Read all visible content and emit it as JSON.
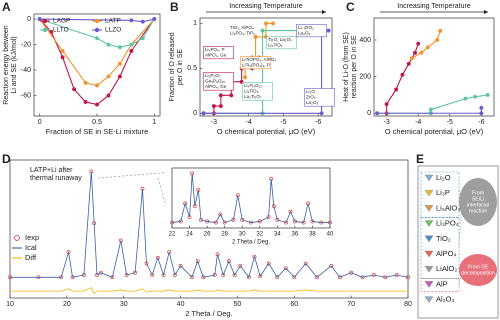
{
  "chart_data": [
    {
      "type": "line",
      "panel_label": "A",
      "y_label": [
        "Reaction energy between",
        "Li and SE (kJ/mol)"
      ],
      "x_label": "Fraction of SE in SE-Li mixture",
      "xlim": [
        -0.05,
        1.05
      ],
      "xticks": [
        0,
        0.5,
        1
      ],
      "ylim": [
        -76,
        4
      ],
      "yticks": [
        0,
        -20,
        -40,
        -60
      ],
      "legend": true,
      "series": [
        {
          "name": "LAGP",
          "color": "#c0174e",
          "mode": "lines+markers",
          "x": [
            0,
            0.1,
            0.2,
            0.3,
            0.4,
            0.5,
            0.6,
            0.7,
            0.8,
            1
          ],
          "values": [
            0,
            -10,
            -30,
            -55,
            -65,
            -67,
            -60,
            -45,
            -25,
            0
          ]
        },
        {
          "name": "LATP",
          "color": "#f4922a",
          "mode": "lines+markers",
          "x": [
            0,
            0.2,
            0.4,
            0.5,
            0.6,
            0.7,
            0.8,
            1
          ],
          "values": [
            0,
            -25,
            -50,
            -52,
            -45,
            -35,
            -20,
            0
          ]
        },
        {
          "name": "LLTO",
          "color": "#5cc5a0",
          "mode": "lines+markers",
          "x": [
            0,
            0.5,
            0.6,
            0.7,
            0.8,
            0.9,
            1
          ],
          "values": [
            0,
            -15,
            -20,
            -22,
            -20,
            -15,
            0
          ]
        },
        {
          "name": "LLZO",
          "color": "#6a5acd",
          "mode": "lines+markers",
          "x": [
            0,
            0.8,
            0.9,
            1
          ],
          "values": [
            0,
            -1,
            -2,
            0
          ]
        }
      ]
    },
    {
      "type": "line",
      "panel_label": "B",
      "arrow_label": "Increasing Temperature",
      "y_label": [
        "Fraction of O released",
        "per O in SE"
      ],
      "x_label": "O chemical potential, μO (eV)",
      "xlim": [
        -2.6,
        -6.4
      ],
      "xticks": [
        -3,
        -4,
        -5,
        -6
      ],
      "ylim": [
        -0.03,
        1.06
      ],
      "yticks": [
        0,
        0.5,
        1
      ],
      "series": [
        {
          "name": "LAGP",
          "color": "#c0174e",
          "mode": "lines+markers",
          "x": [
            -2.7,
            -3.0,
            -3.0,
            -3.2,
            -3.2,
            -3.5,
            -3.5,
            -3.8,
            -3.8,
            -4.1,
            -4.1,
            -4.3
          ],
          "values": [
            0,
            0,
            0.08,
            0.08,
            0.2,
            0.2,
            0.35,
            0.35,
            0.5,
            0.5,
            0.62,
            0.62
          ]
        },
        {
          "name": "LATP",
          "color": "#f4922a",
          "mode": "lines+markers",
          "x": [
            -3.9,
            -3.9,
            -4.2,
            -4.2,
            -4.5,
            -4.5,
            -4.7
          ],
          "values": [
            0.4,
            0.6,
            0.6,
            0.85,
            0.85,
            1.0,
            1.0
          ]
        },
        {
          "name": "LLTO",
          "color": "#5cc5a0",
          "mode": "lines+markers",
          "x": [
            -2.7,
            -4.4,
            -4.4,
            -5.9
          ],
          "values": [
            0,
            0,
            0.92,
            0.92
          ]
        },
        {
          "name": "LLZO",
          "color": "#6a5acd",
          "mode": "lines+markers",
          "x": [
            -2.7,
            -6.1,
            -6.1,
            -6.3
          ],
          "values": [
            0,
            0,
            0.92,
            0.92
          ]
        }
      ],
      "annotations": [
        {
          "lines": [
            "TiO₂, AlPO₄",
            "Li₃PO₄, TiP₂"
          ],
          "color": "none"
        },
        {
          "lines": [
            "Li₃PO₄, P",
            "AlPO₄, Ge"
          ],
          "color": "#c0174e"
        },
        {
          "lines": [
            "Li₂P₂O₇",
            "Ge₅P₆O₂₅",
            "AlPO₄, Ge"
          ],
          "color": "#c0174e"
        },
        {
          "lines": [
            "LiTiOPO₄, AlPO₄",
            "LiTi₂(PO₄)₃, P"
          ],
          "color": "#f4922a"
        },
        {
          "lines": [
            "Li₄Ti₅O₁₂",
            "Li₂TiO₃",
            "La₂Ti₂O₇"
          ],
          "color": "#5cc5a0"
        },
        {
          "lines": [
            "Ti₂O, La₂O₃",
            "Li₄TiO₄"
          ],
          "color": "#5cc5a0"
        },
        {
          "lines": [
            "Li, ZrO₂",
            "La₂O₃"
          ],
          "color": "#6a5acd"
        },
        {
          "lines": [
            "Li₂O",
            "ZrO₂",
            "La₂O₃"
          ],
          "color": "#6a5acd"
        }
      ]
    },
    {
      "type": "line",
      "panel_label": "C",
      "arrow_label": "Increasing Temperature",
      "y_label": [
        "Heat of Li-O (from SE)",
        "reaction per O in SE"
      ],
      "x_label": "O chemical potential, μO (eV)",
      "xlim": [
        -2.6,
        -6.4
      ],
      "xticks": [
        -3,
        -4,
        -5,
        -6
      ],
      "ylim": [
        -15,
        520
      ],
      "yticks": [
        0,
        200,
        400
      ],
      "series": [
        {
          "name": "LAGP",
          "color": "#c0174e",
          "mode": "lines+markers",
          "x": [
            -3.0,
            -3.0,
            -3.3,
            -3.5,
            -3.7,
            -3.9,
            -4.0
          ],
          "values": [
            0,
            50,
            130,
            210,
            270,
            330,
            380
          ]
        },
        {
          "name": "LATP",
          "color": "#f4922a",
          "mode": "lines+markers",
          "x": [
            -3.8,
            -4.1,
            -4.3,
            -4.6,
            -4.7
          ],
          "values": [
            300,
            330,
            360,
            400,
            450
          ]
        },
        {
          "name": "LLTO",
          "color": "#5cc5a0",
          "mode": "lines+markers",
          "x": [
            -2.7,
            -4.4,
            -4.4,
            -5.5,
            -5.8,
            -6.2
          ],
          "values": [
            0,
            0,
            20,
            80,
            90,
            100
          ]
        },
        {
          "name": "LLZO",
          "color": "#6a5acd",
          "mode": "lines+markers",
          "x": [
            -2.7,
            -6.0,
            -6.0
          ],
          "values": [
            0,
            0,
            30
          ]
        }
      ]
    },
    {
      "type": "line",
      "panel_label": "D",
      "annotation": [
        "LATP+Li after",
        "thermal runaway"
      ],
      "x_label": "2 Theta / Deg.",
      "xlim": [
        10,
        80
      ],
      "xticks": [
        10,
        20,
        30,
        40,
        50,
        60,
        70,
        80
      ],
      "ylim": [
        -10,
        110
      ],
      "legend": true,
      "x": [
        10,
        15,
        19,
        20.3,
        21,
        23,
        24.3,
        24.8,
        25.3,
        26,
        28,
        29.5,
        30.5,
        32,
        33.3,
        34,
        35,
        36,
        37,
        38,
        39,
        40,
        42,
        43,
        44,
        46,
        46.5,
        47.5,
        48.5,
        49.5,
        50.5,
        52,
        53,
        54,
        55.5,
        57,
        58.5,
        60,
        62,
        64,
        66.5,
        68,
        70,
        72,
        74,
        76,
        78,
        80
      ],
      "series": [
        {
          "name": "Iexp",
          "color": "#d62728",
          "mode": "markers",
          "values": [
            8,
            8,
            8,
            30,
            8,
            10,
            100,
            55,
            10,
            12,
            8,
            40,
            10,
            12,
            85,
            20,
            10,
            25,
            10,
            30,
            10,
            18,
            8,
            22,
            8,
            10,
            28,
            10,
            22,
            10,
            18,
            8,
            26,
            9,
            20,
            8,
            16,
            8,
            20,
            8,
            18,
            8,
            12,
            8,
            10,
            8,
            10,
            8
          ]
        },
        {
          "name": "Ical",
          "color": "#3a5fa8",
          "mode": "lines",
          "values": [
            8,
            8,
            8,
            30,
            8,
            10,
            100,
            55,
            10,
            12,
            8,
            40,
            10,
            12,
            85,
            20,
            10,
            25,
            10,
            30,
            10,
            18,
            8,
            22,
            8,
            10,
            28,
            10,
            22,
            10,
            18,
            8,
            26,
            9,
            20,
            8,
            16,
            8,
            20,
            8,
            18,
            8,
            12,
            8,
            10,
            8,
            10,
            8
          ]
        },
        {
          "name": "Diff",
          "color": "#f4b400",
          "mode": "lines",
          "values": [
            -4,
            -4,
            -4,
            -2,
            -4,
            -4,
            -1,
            -6,
            -4,
            -4,
            -4,
            -3,
            -4,
            -4,
            -2,
            -5,
            -4,
            -4,
            -4,
            -3,
            -4,
            -4,
            -4,
            -3,
            -4,
            -4,
            -3,
            -4,
            -4,
            -4,
            -4,
            -4,
            -3,
            -4,
            -4,
            -4,
            -4,
            -4,
            -3,
            -4,
            -4,
            -4,
            -4,
            -4,
            -4,
            -4,
            -4,
            -4
          ]
        }
      ]
    },
    {
      "type": "line",
      "inset": true,
      "x_label": "2 Theta / Deg.",
      "xlim": [
        22,
        40
      ],
      "xticks": [
        22,
        24,
        26,
        28,
        30,
        32,
        34,
        36,
        38,
        40
      ],
      "ylim": [
        0,
        110
      ],
      "x": [
        22,
        23,
        23.5,
        24,
        24.3,
        24.6,
        25,
        25.3,
        26,
        27,
        27.5,
        28,
        29,
        29.5,
        30,
        31,
        32,
        33,
        33.3,
        33.6,
        34,
        35,
        35.5,
        36,
        37,
        37.5,
        38,
        39,
        40
      ],
      "series": [
        {
          "name": "Iexp",
          "color": "#d62728",
          "mode": "markers",
          "values": [
            10,
            12,
            45,
            20,
            100,
            40,
            70,
            15,
            12,
            10,
            25,
            10,
            15,
            60,
            15,
            10,
            12,
            20,
            90,
            40,
            15,
            10,
            30,
            12,
            10,
            45,
            12,
            10,
            10
          ]
        },
        {
          "name": "Ical",
          "color": "#3a5fa8",
          "mode": "lines",
          "values": [
            10,
            12,
            45,
            20,
            100,
            40,
            70,
            15,
            12,
            10,
            25,
            10,
            15,
            60,
            15,
            10,
            12,
            20,
            90,
            40,
            15,
            10,
            30,
            12,
            10,
            45,
            12,
            10,
            10
          ]
        }
      ]
    }
  ],
  "legend_panel": {
    "panel_label": "E",
    "items": [
      {
        "name": "Li₂O",
        "color": "#7fb2d9"
      },
      {
        "name": "Li₃P",
        "color": "#e8b83a"
      },
      {
        "name": "Li₅AlO₄",
        "color": "#d99a4a"
      },
      {
        "name": "Li₃PO₄",
        "color": "#6bc26b"
      },
      {
        "name": "TiO₂",
        "color": "#4a90c8"
      },
      {
        "name": "AlPO₄",
        "color": "#e06a5a"
      },
      {
        "name": "LiAlO₂",
        "color": "#9a9a9a"
      },
      {
        "name": "AlP",
        "color": "#c85ab8"
      },
      {
        "name": "Al₂O₃",
        "color": "#8ab0c8"
      }
    ],
    "groups": [
      {
        "lines": [
          "From",
          "SE/Li",
          "interfacial",
          "reaction"
        ],
        "color": "#9e9e9e"
      },
      {
        "lines": [
          "From SE",
          "decomposition"
        ],
        "color": "#e8707a"
      }
    ]
  }
}
